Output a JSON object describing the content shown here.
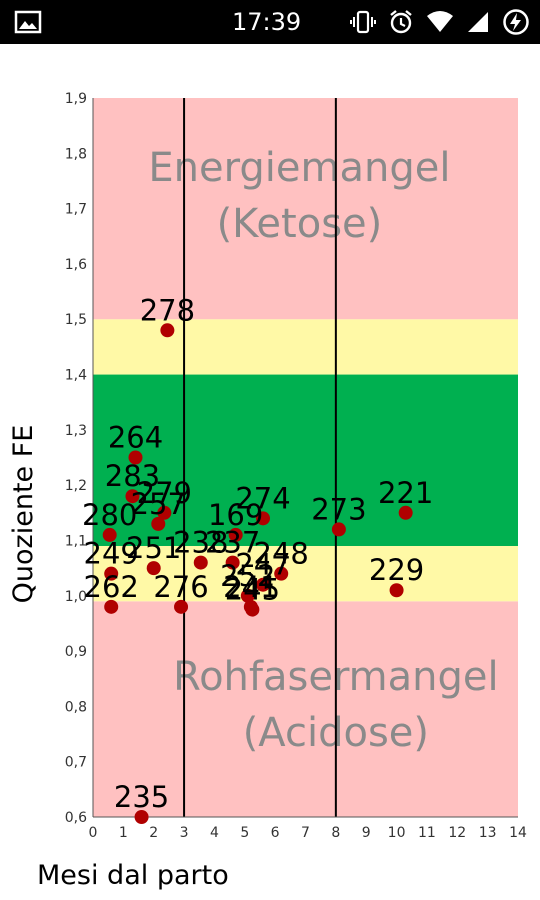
{
  "status_bar": {
    "time": "17:39",
    "icons": [
      "image-icon",
      "vibrate-icon",
      "alarm-icon",
      "wifi-icon",
      "signal-icon",
      "battery-charging-icon"
    ]
  },
  "chart_data": {
    "type": "scatter",
    "xlabel": "Mesi dal parto",
    "ylabel": "Quoziente FE",
    "xlim": [
      0,
      14
    ],
    "ylim": [
      0.6,
      1.9
    ],
    "x_ticks": [
      "0",
      "1",
      "2",
      "3",
      "4",
      "5",
      "6",
      "7",
      "8",
      "9",
      "10",
      "11",
      "12",
      "13",
      "14"
    ],
    "y_ticks": [
      "0,6",
      "0,7",
      "0,8",
      "0,9",
      "1,0",
      "1,1",
      "1,2",
      "1,3",
      "1,4",
      "1,5",
      "1,6",
      "1,7",
      "1,8",
      "1,9"
    ],
    "vertical_lines": [
      3,
      8
    ],
    "bands": [
      {
        "from": 0.6,
        "to": 0.99,
        "color": "#ffc1c1"
      },
      {
        "from": 0.99,
        "to": 1.09,
        "color": "#fff9a6"
      },
      {
        "from": 1.09,
        "to": 1.4,
        "color": "#00b050"
      },
      {
        "from": 1.4,
        "to": 1.5,
        "color": "#fff9a6"
      },
      {
        "from": 1.5,
        "to": 1.9,
        "color": "#ffc1c1"
      }
    ],
    "zone_labels": [
      {
        "line1": "Energiemangel",
        "line2": "(Ketose)",
        "x": 6.8,
        "y": 1.75
      },
      {
        "line1": "Rohfasermangel",
        "line2": "(Acidose)",
        "x": 8.0,
        "y": 0.83
      }
    ],
    "point_color": "#b00000",
    "points": [
      {
        "x": 2.45,
        "y": 1.48,
        "label": "278"
      },
      {
        "x": 1.4,
        "y": 1.25,
        "label": "264"
      },
      {
        "x": 1.3,
        "y": 1.18,
        "label": "283"
      },
      {
        "x": 2.35,
        "y": 1.15,
        "label": "279"
      },
      {
        "x": 2.15,
        "y": 1.13,
        "label": "257"
      },
      {
        "x": 0.55,
        "y": 1.11,
        "label": "280"
      },
      {
        "x": 5.6,
        "y": 1.14,
        "label": "274"
      },
      {
        "x": 4.7,
        "y": 1.11,
        "label": "169"
      },
      {
        "x": 8.1,
        "y": 1.12,
        "label": "273"
      },
      {
        "x": 10.3,
        "y": 1.15,
        "label": "221"
      },
      {
        "x": 0.6,
        "y": 1.04,
        "label": "249"
      },
      {
        "x": 2.0,
        "y": 1.05,
        "label": "251"
      },
      {
        "x": 3.55,
        "y": 1.06,
        "label": "238"
      },
      {
        "x": 4.6,
        "y": 1.06,
        "label": "237"
      },
      {
        "x": 6.2,
        "y": 1.04,
        "label": "248"
      },
      {
        "x": 5.6,
        "y": 1.02,
        "label": "247"
      },
      {
        "x": 5.1,
        "y": 1.0,
        "label": "252"
      },
      {
        "x": 5.2,
        "y": 0.98,
        "label": "241"
      },
      {
        "x": 5.25,
        "y": 0.975,
        "label": "245"
      },
      {
        "x": 10.0,
        "y": 1.01,
        "label": "229"
      },
      {
        "x": 0.6,
        "y": 0.98,
        "label": "262"
      },
      {
        "x": 2.9,
        "y": 0.98,
        "label": "276"
      },
      {
        "x": 1.6,
        "y": 0.6,
        "label": "235"
      }
    ]
  }
}
